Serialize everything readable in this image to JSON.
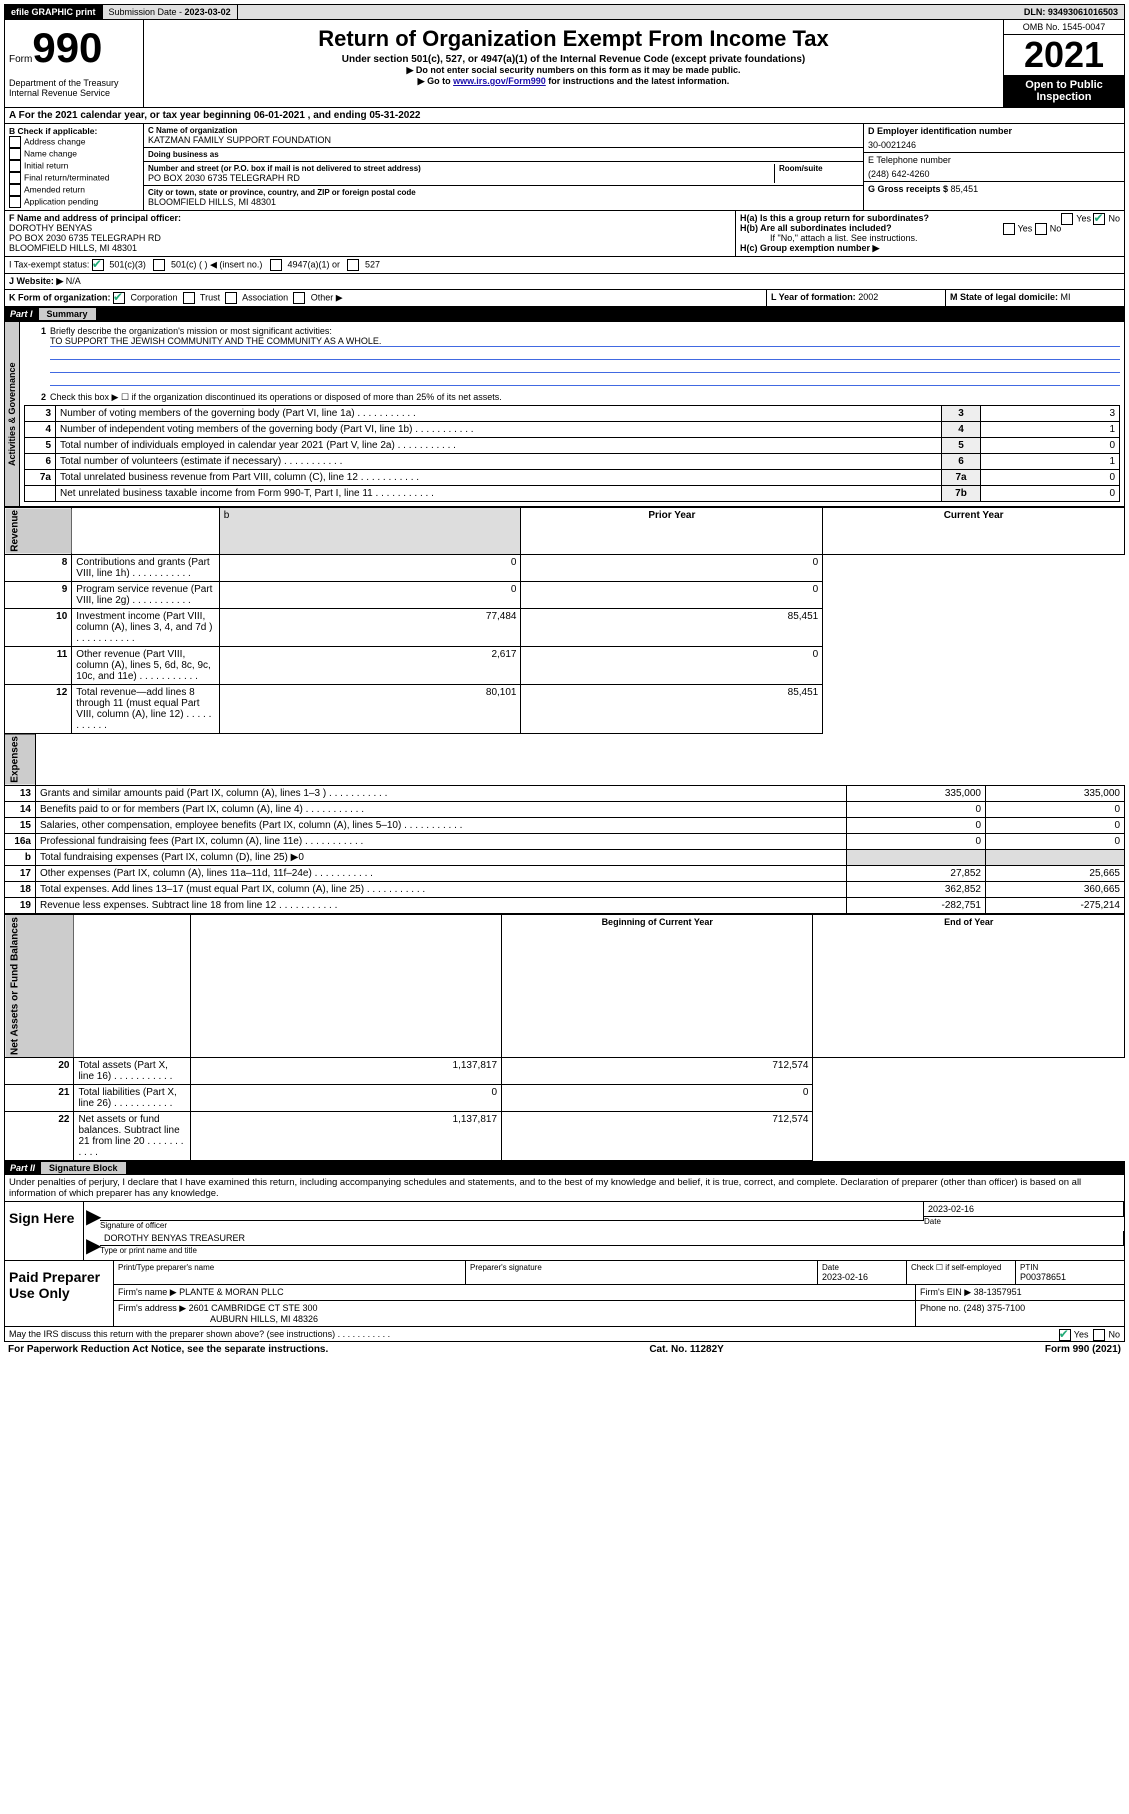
{
  "topbar": {
    "efile": "efile GRAPHIC print",
    "sub_label": "Submission Date - ",
    "sub_date": "2023-03-02",
    "dln_label": "DLN: ",
    "dln": "93493061016503"
  },
  "header": {
    "form_word": "Form",
    "form_num": "990",
    "dept": "Department of the Treasury\nInternal Revenue Service",
    "title": "Return of Organization Exempt From Income Tax",
    "sub1": "Under section 501(c), 527, or 4947(a)(1) of the Internal Revenue Code (except private foundations)",
    "sub2": "▶ Do not enter social security numbers on this form as it may be made public.",
    "sub3_pre": "▶ Go to ",
    "sub3_link": "www.irs.gov/Form990",
    "sub3_post": " for instructions and the latest information.",
    "omb": "OMB No. 1545-0047",
    "year": "2021",
    "open": "Open to Public Inspection"
  },
  "period": {
    "text_pre": "A For the 2021 calendar year, or tax year beginning ",
    "begin": "06-01-2021",
    "mid": " , and ending ",
    "end": "05-31-2022"
  },
  "checkB": {
    "label": "B Check if applicable:",
    "opts": [
      "Address change",
      "Name change",
      "Initial return",
      "Final return/terminated",
      "Amended return",
      "Application pending"
    ]
  },
  "colC": {
    "name_label": "C Name of organization",
    "name": "KATZMAN FAMILY SUPPORT FOUNDATION",
    "dba_label": "Doing business as",
    "dba": "",
    "addr_label": "Number and street (or P.O. box if mail is not delivered to street address)",
    "addr": "PO BOX 2030 6735 TELEGRAPH RD",
    "room_label": "Room/suite",
    "city_label": "City or town, state or province, country, and ZIP or foreign postal code",
    "city": "BLOOMFIELD HILLS, MI  48301"
  },
  "colD": {
    "ein_label": "D Employer identification number",
    "ein": "30-0021246",
    "tel_label": "E Telephone number",
    "tel": "(248) 642-4260",
    "gross_label": "G Gross receipts $ ",
    "gross": "85,451"
  },
  "rowF": {
    "label": "F Name and address of principal officer:",
    "name": "DOROTHY BENYAS",
    "addr1": "PO BOX 2030 6735 TELEGRAPH RD",
    "addr2": "BLOOMFIELD HILLS, MI  48301"
  },
  "rowH": {
    "ha": "H(a)  Is this a group return for subordinates?",
    "hb": "H(b)  Are all subordinates included?",
    "hb_note": "If \"No,\" attach a list. See instructions.",
    "hc": "H(c)  Group exemption number ▶"
  },
  "rowI": {
    "label": "I   Tax-exempt status:",
    "o1": "501(c)(3)",
    "o2": "501(c) (  ) ◀ (insert no.)",
    "o3": "4947(a)(1) or",
    "o4": "527"
  },
  "rowJ": {
    "label": "J   Website: ▶ ",
    "val": "N/A"
  },
  "rowK": {
    "label": "K Form of organization:",
    "opts": [
      "Corporation",
      "Trust",
      "Association",
      "Other ▶"
    ]
  },
  "rowL": {
    "label": "L Year of formation: ",
    "val": "2002"
  },
  "rowM": {
    "label": "M State of legal domicile: ",
    "val": "MI"
  },
  "part1": {
    "hdr": "Part I",
    "title": "Summary",
    "q1": "Briefly describe the organization's mission or most significant activities:",
    "mission": "TO SUPPORT THE JEWISH COMMUNITY AND THE COMMUNITY AS A WHOLE.",
    "q2": "Check this box ▶ ☐  if the organization discontinued its operations or disposed of more than 25% of its net assets.",
    "tabs": {
      "ag": "Activities & Governance",
      "rev": "Revenue",
      "exp": "Expenses",
      "net": "Net Assets or Fund Balances"
    },
    "lines_top": [
      {
        "n": "3",
        "d": "Number of voting members of the governing body (Part VI, line 1a)",
        "ln": "3",
        "v": "3"
      },
      {
        "n": "4",
        "d": "Number of independent voting members of the governing body (Part VI, line 1b)",
        "ln": "4",
        "v": "1"
      },
      {
        "n": "5",
        "d": "Total number of individuals employed in calendar year 2021 (Part V, line 2a)",
        "ln": "5",
        "v": "0"
      },
      {
        "n": "6",
        "d": "Total number of volunteers (estimate if necessary)",
        "ln": "6",
        "v": "1"
      },
      {
        "n": "7a",
        "d": "Total unrelated business revenue from Part VIII, column (C), line 12",
        "ln": "7a",
        "v": "0"
      },
      {
        "n": "",
        "d": "Net unrelated business taxable income from Form 990-T, Part I, line 11",
        "ln": "7b",
        "v": "0"
      }
    ],
    "col_hdr_prior": "Prior Year",
    "col_hdr_curr": "Current Year",
    "lines_rev": [
      {
        "n": "8",
        "d": "Contributions and grants (Part VIII, line 1h)",
        "p": "0",
        "c": "0"
      },
      {
        "n": "9",
        "d": "Program service revenue (Part VIII, line 2g)",
        "p": "0",
        "c": "0"
      },
      {
        "n": "10",
        "d": "Investment income (Part VIII, column (A), lines 3, 4, and 7d )",
        "p": "77,484",
        "c": "85,451"
      },
      {
        "n": "11",
        "d": "Other revenue (Part VIII, column (A), lines 5, 6d, 8c, 9c, 10c, and 11e)",
        "p": "2,617",
        "c": "0"
      },
      {
        "n": "12",
        "d": "Total revenue—add lines 8 through 11 (must equal Part VIII, column (A), line 12)",
        "p": "80,101",
        "c": "85,451"
      }
    ],
    "lines_exp": [
      {
        "n": "13",
        "d": "Grants and similar amounts paid (Part IX, column (A), lines 1–3 )",
        "p": "335,000",
        "c": "335,000"
      },
      {
        "n": "14",
        "d": "Benefits paid to or for members (Part IX, column (A), line 4)",
        "p": "0",
        "c": "0"
      },
      {
        "n": "15",
        "d": "Salaries, other compensation, employee benefits (Part IX, column (A), lines 5–10)",
        "p": "0",
        "c": "0"
      },
      {
        "n": "16a",
        "d": "Professional fundraising fees (Part IX, column (A), line 11e)",
        "p": "0",
        "c": "0"
      },
      {
        "n": "b",
        "d": "Total fundraising expenses (Part IX, column (D), line 25) ▶0",
        "p": "",
        "c": "",
        "shade": true
      },
      {
        "n": "17",
        "d": "Other expenses (Part IX, column (A), lines 11a–11d, 11f–24e)",
        "p": "27,852",
        "c": "25,665"
      },
      {
        "n": "18",
        "d": "Total expenses. Add lines 13–17 (must equal Part IX, column (A), line 25)",
        "p": "362,852",
        "c": "360,665"
      },
      {
        "n": "19",
        "d": "Revenue less expenses. Subtract line 18 from line 12",
        "p": "-282,751",
        "c": "-275,214"
      }
    ],
    "col_hdr_begin": "Beginning of Current Year",
    "col_hdr_end": "End of Year",
    "lines_net": [
      {
        "n": "20",
        "d": "Total assets (Part X, line 16)",
        "p": "1,137,817",
        "c": "712,574"
      },
      {
        "n": "21",
        "d": "Total liabilities (Part X, line 26)",
        "p": "0",
        "c": "0"
      },
      {
        "n": "22",
        "d": "Net assets or fund balances. Subtract line 21 from line 20",
        "p": "1,137,817",
        "c": "712,574"
      }
    ]
  },
  "part2": {
    "hdr": "Part II",
    "title": "Signature Block",
    "decl": "Under penalties of perjury, I declare that I have examined this return, including accompanying schedules and statements, and to the best of my knowledge and belief, it is true, correct, and complete. Declaration of preparer (other than officer) is based on all information of which preparer has any knowledge.",
    "sign_here": "Sign Here",
    "sig_officer_label": "Signature of officer",
    "sig_date": "2023-02-16",
    "date_label": "Date",
    "officer_name": "DOROTHY BENYAS  TREASURER",
    "officer_label": "Type or print name and title",
    "paid": "Paid Preparer Use Only",
    "prep_name_label": "Print/Type preparer's name",
    "prep_sig_label": "Preparer's signature",
    "prep_date_label": "Date",
    "prep_date": "2023-02-16",
    "self_emp": "Check ☐ if self-employed",
    "ptin_label": "PTIN",
    "ptin": "P00378651",
    "firm_name_label": "Firm's name      ▶ ",
    "firm_name": "PLANTE & MORAN PLLC",
    "firm_ein_label": "Firm's EIN ▶ ",
    "firm_ein": "38-1357951",
    "firm_addr_label": "Firm's address ▶ ",
    "firm_addr1": "2601 CAMBRIDGE CT STE 300",
    "firm_addr2": "AUBURN HILLS, MI  48326",
    "firm_phone_label": "Phone no. ",
    "firm_phone": "(248) 375-7100",
    "discuss": "May the IRS discuss this return with the preparer shown above? (see instructions)"
  },
  "footer": {
    "left": "For Paperwork Reduction Act Notice, see the separate instructions.",
    "mid": "Cat. No. 11282Y",
    "right": "Form 990 (2021)"
  }
}
